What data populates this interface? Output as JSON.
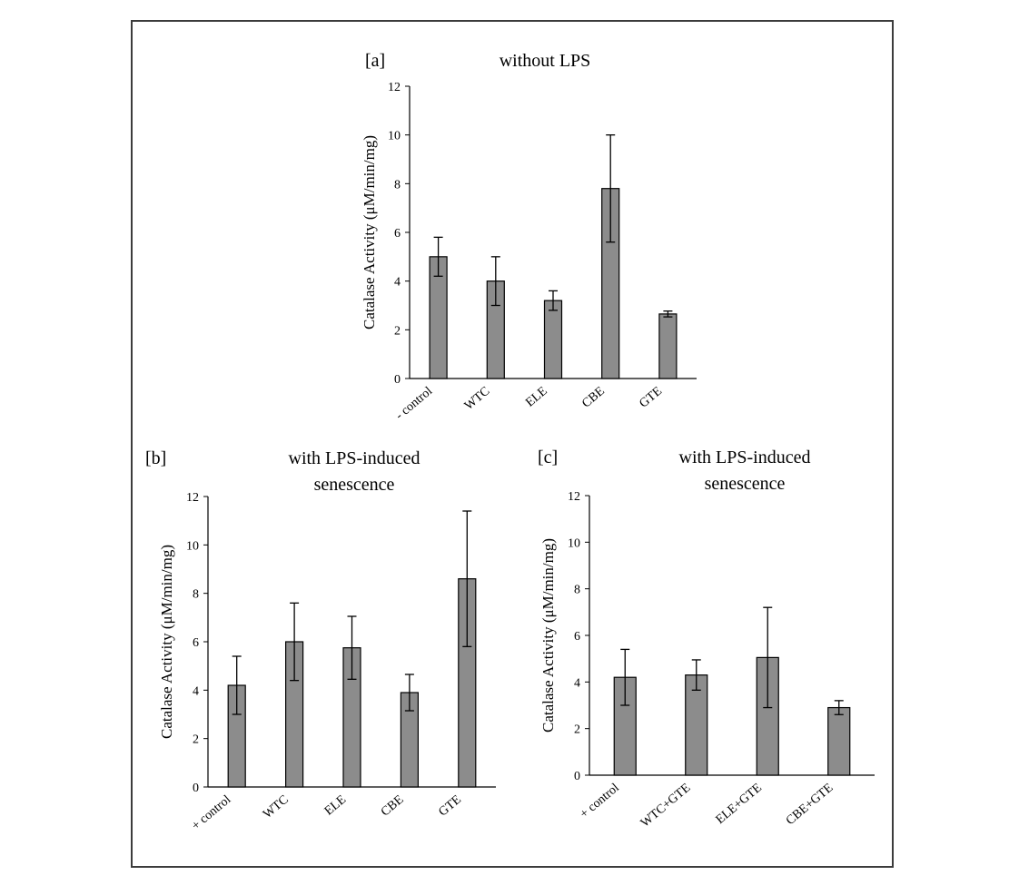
{
  "colors": {
    "bar_fill": "#8c8c8c",
    "bar_stroke": "#000000",
    "axis": "#000000",
    "frame": "#3c3c3c"
  },
  "chart_data": [
    {
      "type": "bar",
      "panel_label": "[a]",
      "title": "without LPS",
      "ylabel": "Catalase Activity (μM/min/mg)",
      "xlabel": "",
      "ylim": [
        0,
        12
      ],
      "yticks": [
        0,
        2,
        4,
        6,
        8,
        10,
        12
      ],
      "grid": false,
      "categories": [
        "- control",
        "WTC",
        "ELE",
        "CBE",
        "GTE"
      ],
      "values": [
        5.0,
        4.0,
        3.2,
        7.8,
        2.65
      ],
      "error": [
        0.8,
        1.0,
        0.4,
        2.2,
        0.12
      ]
    },
    {
      "type": "bar",
      "panel_label": "[b]",
      "title": "with LPS-induced senescence",
      "title_lines": [
        "with LPS-induced",
        "senescence"
      ],
      "ylabel": "Catalase Activity (μM/min/mg)",
      "xlabel": "",
      "ylim": [
        0,
        12
      ],
      "yticks": [
        0,
        2,
        4,
        6,
        8,
        10,
        12
      ],
      "grid": false,
      "categories": [
        "+ control",
        "WTC",
        "ELE",
        "CBE",
        "GTE"
      ],
      "values": [
        4.2,
        6.0,
        5.75,
        3.9,
        8.6
      ],
      "error": [
        1.2,
        1.6,
        1.3,
        0.75,
        2.8
      ]
    },
    {
      "type": "bar",
      "panel_label": "[c]",
      "title": "with LPS-induced senescence",
      "title_lines": [
        "with LPS-induced",
        "senescence"
      ],
      "ylabel": "Catalase Activity (μM/min/mg)",
      "xlabel": "",
      "ylim": [
        0,
        12
      ],
      "yticks": [
        0,
        2,
        4,
        6,
        8,
        10,
        12
      ],
      "grid": false,
      "categories": [
        "+ control",
        "WTC+GTE",
        "ELE+GTE",
        "CBE+GTE"
      ],
      "values": [
        4.2,
        4.3,
        5.05,
        2.9
      ],
      "error": [
        1.2,
        0.65,
        2.15,
        0.3
      ]
    }
  ]
}
